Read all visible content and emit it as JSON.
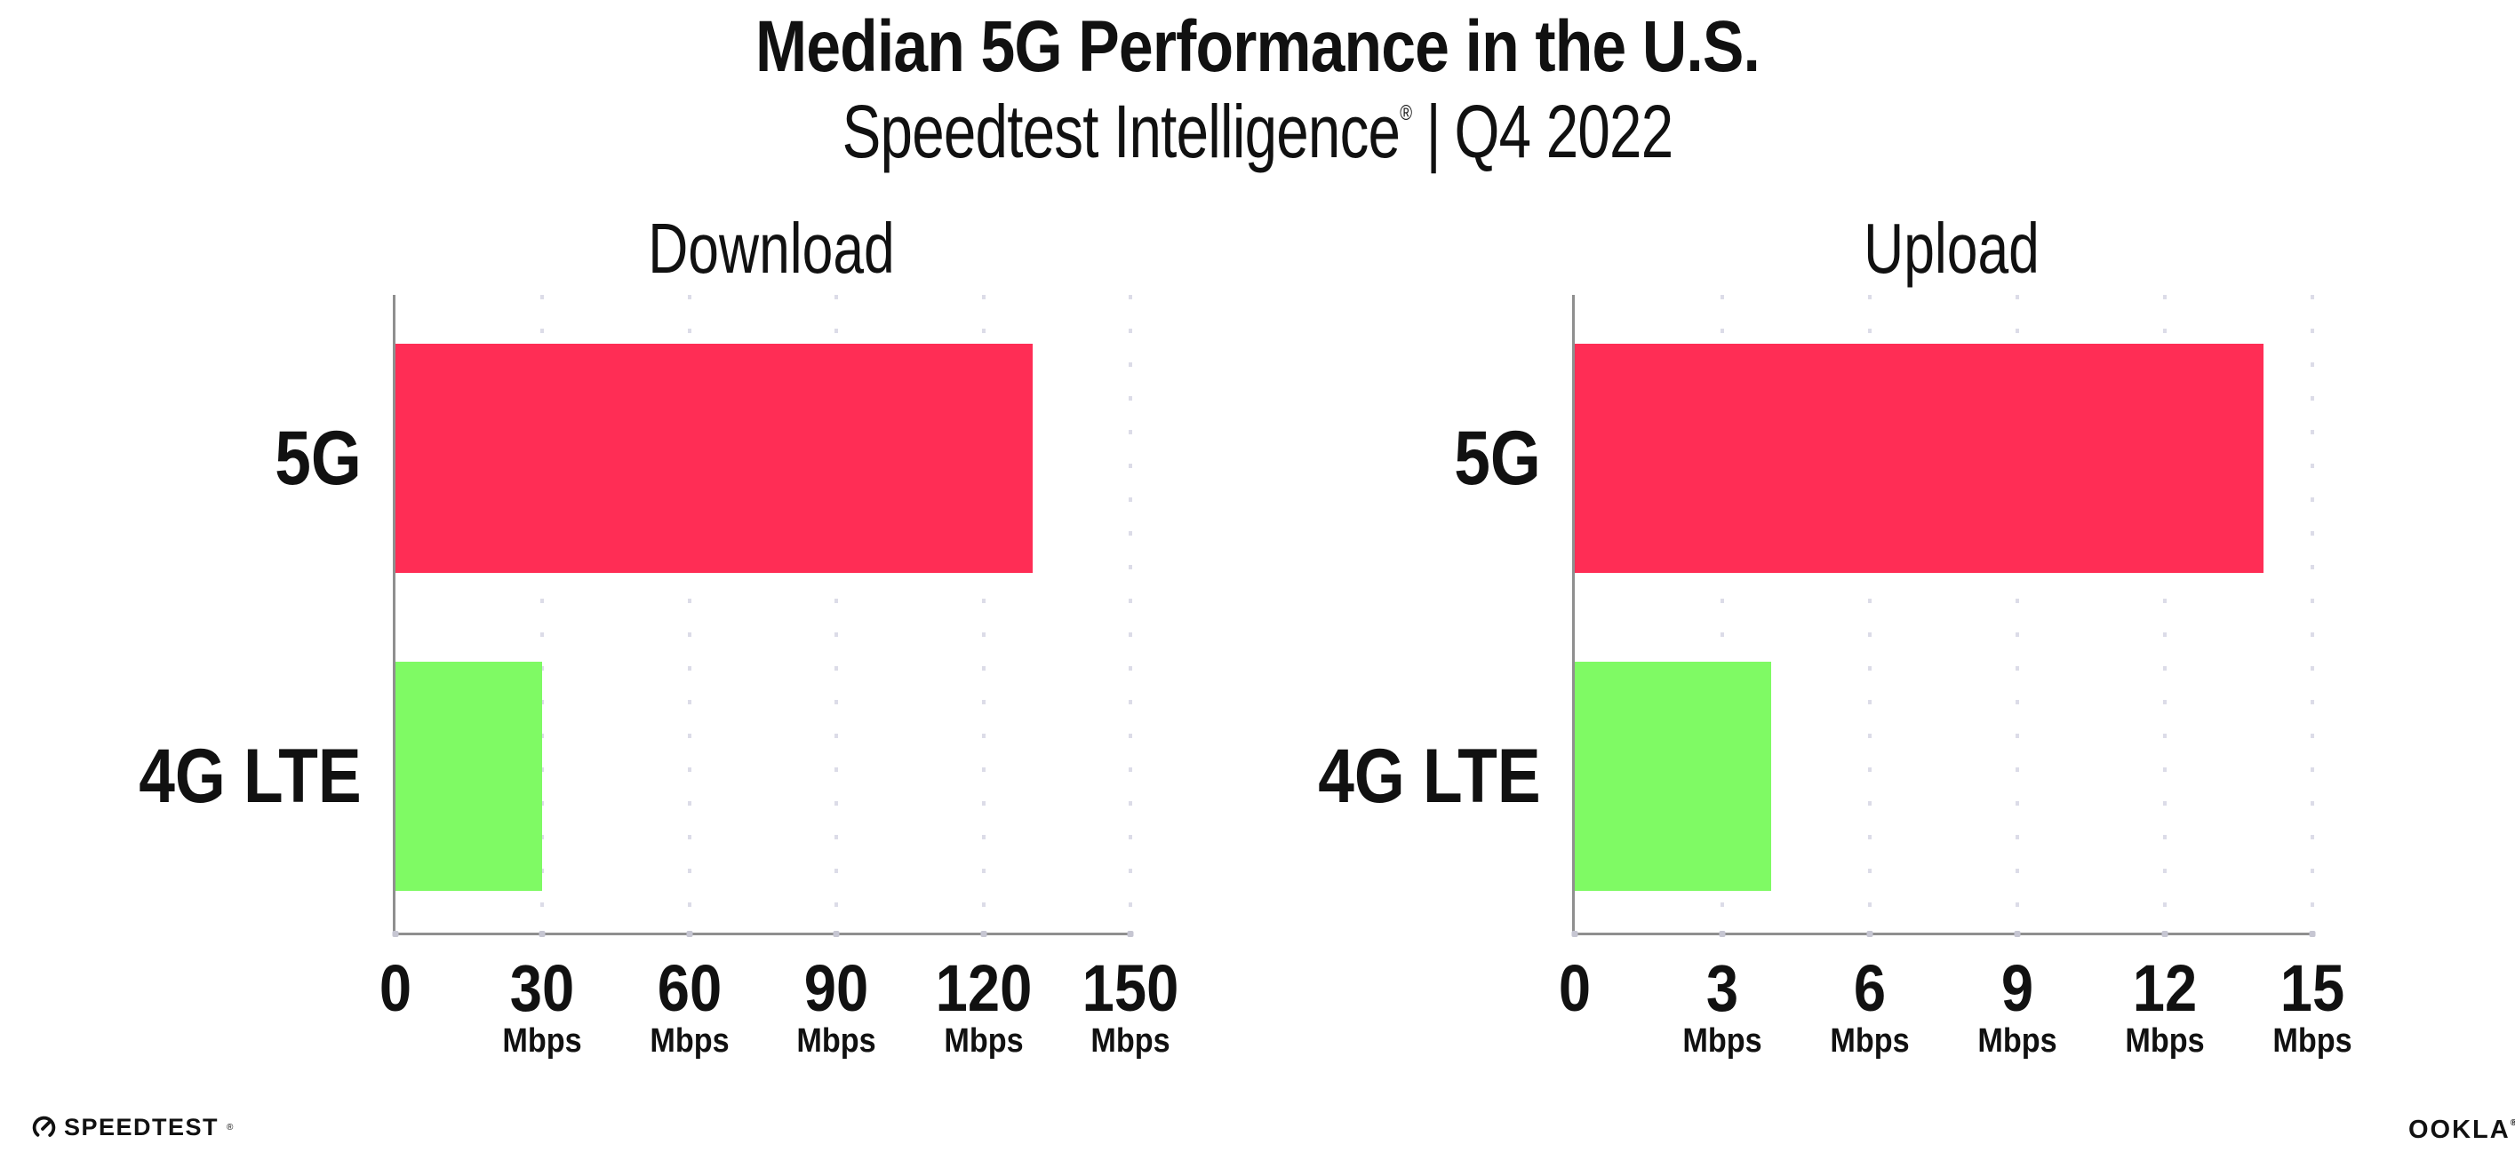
{
  "header": {
    "title": "Median 5G Performance in the U.S.",
    "subtitle": {
      "brand": "Speedtest Intelligence",
      "reg": "®",
      "sep": "|",
      "period": "Q4 2022"
    }
  },
  "chart_data": [
    {
      "type": "bar",
      "orientation": "horizontal",
      "title": "Download",
      "categories": [
        "5G",
        "4G LTE"
      ],
      "values": [
        130,
        30
      ],
      "unit": "Mbps",
      "xticks": [
        0,
        30,
        60,
        90,
        120,
        150
      ],
      "xlim": [
        0,
        150
      ],
      "bar_colors": [
        "#ff2d55",
        "#7ffa64"
      ],
      "grid": "dotted-vertical-at-ticks",
      "legend": "none"
    },
    {
      "type": "bar",
      "orientation": "horizontal",
      "title": "Upload",
      "categories": [
        "5G",
        "4G LTE"
      ],
      "values": [
        14,
        4
      ],
      "unit": "Mbps",
      "xticks": [
        0,
        3,
        6,
        9,
        12,
        15
      ],
      "xlim": [
        0,
        15
      ],
      "bar_colors": [
        "#ff2d55",
        "#7ffa64"
      ],
      "grid": "dotted-vertical-at-ticks",
      "legend": "none"
    }
  ],
  "footer": {
    "speedtest": {
      "label": "SPEEDTEST",
      "reg": "®",
      "icon": "gauge-icon"
    },
    "ookla": {
      "label": "OOKLA",
      "reg": "®"
    }
  },
  "colors": {
    "bar_5g": "#ff2d55",
    "bar_4g_lte": "#7ffa64",
    "axis": "#8f8f8f",
    "gridline": "#dcdce8",
    "text": "#111111",
    "background": "#ffffff"
  }
}
